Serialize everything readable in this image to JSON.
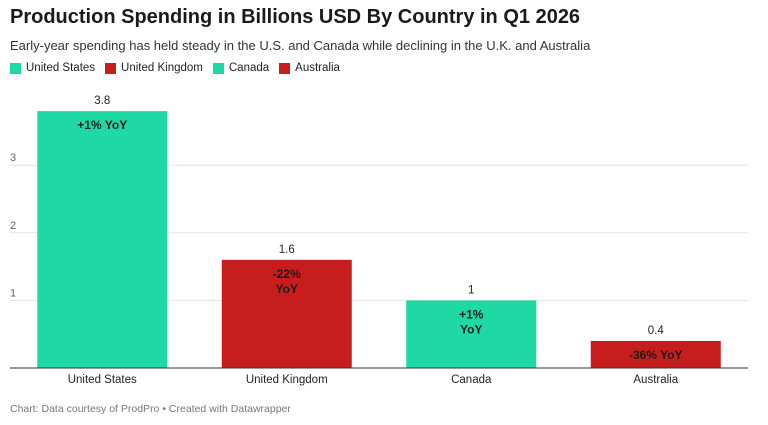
{
  "title": "Production Spending in Billions USD By Country in Q1 2026",
  "subtitle": "Early-year spending has held steady in the U.S. and Canada while declining in the U.K. and Australia",
  "legend": [
    {
      "label": "United States",
      "color": "#1ed9a4"
    },
    {
      "label": "United Kingdom",
      "color": "#c71e1d"
    },
    {
      "label": "Canada",
      "color": "#1ed9a4"
    },
    {
      "label": "Australia",
      "color": "#c71e1d"
    }
  ],
  "footer": "Chart: Data courtesy of ProdPro • Created with Datawrapper",
  "chart_data": {
    "type": "bar",
    "title": "Production Spending in Billions USD By Country in Q1 2026",
    "subtitle": "Early-year spending has held steady in the U.S. and Canada while declining in the U.K. and Australia",
    "xlabel": "",
    "ylabel": "",
    "categories": [
      "United States",
      "United Kingdom",
      "Canada",
      "Australia"
    ],
    "values": [
      3.8,
      1.6,
      1,
      0.4
    ],
    "value_labels": [
      "3.8",
      "1.6",
      "1",
      "0.4"
    ],
    "colors": [
      "#1ed9a4",
      "#c71e1d",
      "#1ed9a4",
      "#c71e1d"
    ],
    "annotations": [
      [
        "+1% YoY"
      ],
      [
        "-22%",
        "YoY"
      ],
      [
        "+1%",
        "YoY"
      ],
      [
        "-36% YoY"
      ]
    ],
    "yticks": [
      1,
      2,
      3
    ],
    "ylim": [
      0,
      3.8
    ],
    "grid": true,
    "legend_position": "top-left"
  }
}
